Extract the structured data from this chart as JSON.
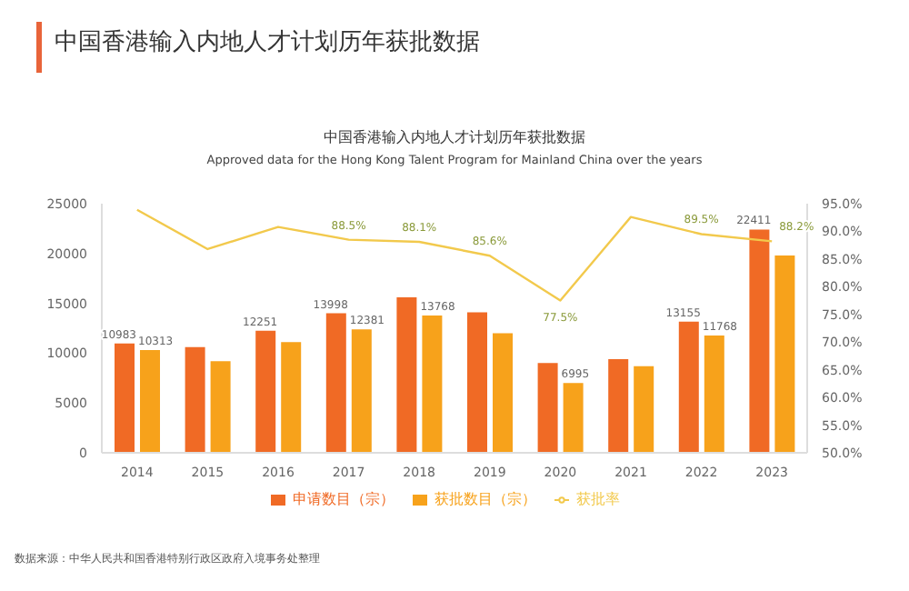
{
  "chart_data": {
    "type": "bar",
    "title": "中国香港输入内地人才计划历年获批数据",
    "subtitle": "Approved data for the Hong Kong Talent Program for Mainland China over the years",
    "annotations": [
      "中国香港输入内地人才计划历年获批数据",
      "数据来源：中华人民共和国香港特别行政区政府入境事务处整理"
    ],
    "categories": [
      "2014",
      "2015",
      "2016",
      "2017",
      "2018",
      "2019",
      "2020",
      "2021",
      "2022",
      "2023"
    ],
    "series": [
      {
        "name": "申请数目（宗）",
        "color": "#f06a25",
        "values": [
          10983,
          10600,
          12251,
          13998,
          15600,
          14100,
          9000,
          9400,
          13155,
          22411
        ],
        "value_labels": [
          "10983",
          null,
          "12251",
          "13998",
          null,
          null,
          null,
          null,
          "13155",
          "22411"
        ]
      },
      {
        "name": "获批数目（宗）",
        "color": "#f7a21b",
        "values": [
          10313,
          9200,
          11100,
          12381,
          13768,
          12000,
          6995,
          8700,
          11768,
          19800
        ],
        "value_labels": [
          "10313",
          null,
          null,
          "12381",
          "13768",
          null,
          "6995",
          null,
          "11768",
          null
        ]
      },
      {
        "name": "获批率",
        "type": "line",
        "axis": "y2",
        "color": "#f2c94c",
        "values": [
          93.9,
          86.8,
          90.8,
          88.5,
          88.1,
          85.6,
          77.5,
          92.6,
          89.5,
          88.2
        ],
        "value_labels": [
          null,
          null,
          null,
          "88.5%",
          "88.1%",
          "85.6%",
          "77.5%",
          null,
          "89.5%",
          "88.2%"
        ]
      }
    ],
    "ylim": [
      0,
      25000
    ],
    "yticks": [
      0,
      5000,
      10000,
      15000,
      20000,
      25000
    ],
    "y2lim": [
      50,
      95
    ],
    "y2ticks": [
      {
        "value": 50,
        "label": "50.0%"
      },
      {
        "value": 55,
        "label": "55.0%"
      },
      {
        "value": 60,
        "label": "60.0%"
      },
      {
        "value": 65,
        "label": "65.0%"
      },
      {
        "value": 70,
        "label": "70.0%"
      },
      {
        "value": 75,
        "label": "75.0%"
      },
      {
        "value": 80,
        "label": "80.0%"
      },
      {
        "value": 85,
        "label": "85.0%"
      },
      {
        "value": 90,
        "label": "90.0%"
      },
      {
        "value": 95,
        "label": "95.0%"
      }
    ],
    "grid": false,
    "legend": "bottom",
    "marker": "none",
    "line_style": "solid"
  }
}
